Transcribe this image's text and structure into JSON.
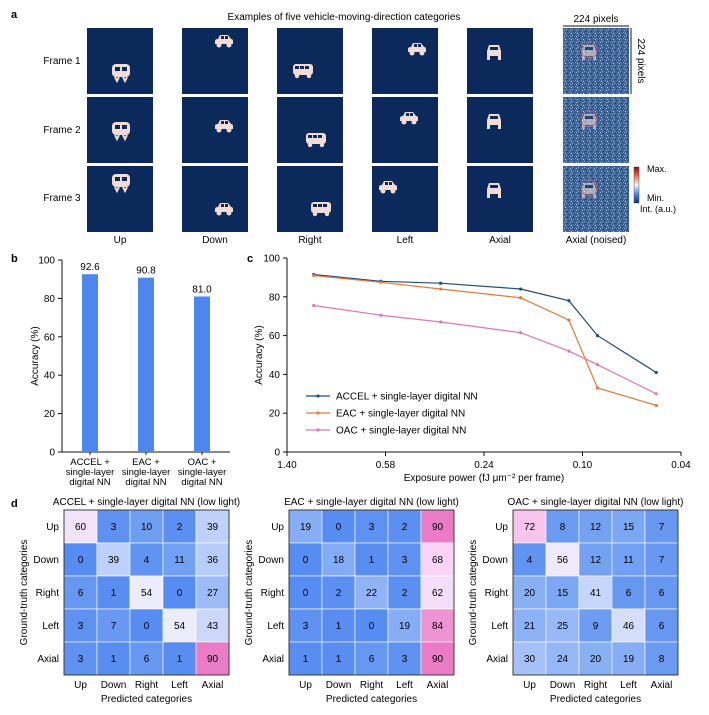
{
  "panel_labels": {
    "a": "a",
    "b": "b",
    "c": "c",
    "d": "d"
  },
  "panel_a": {
    "title": "Examples of five vehicle-moving-direction categories",
    "frame_labels": [
      "Frame 1",
      "Frame 2",
      "Frame 3"
    ],
    "categories": [
      "Up",
      "Down",
      "Right",
      "Left",
      "Axial",
      "Axial (noised)"
    ],
    "size_top": "224 pixels",
    "size_side": "224 pixels",
    "colorbar": {
      "max": "Max.",
      "min": "Min.",
      "unit": "Int. (a.u.)"
    },
    "colors": {
      "background": "#0b2a5b",
      "vehicle": "#f2ddd6",
      "noise_bg": "#4d6f9e"
    }
  },
  "chart_data": [
    {
      "type": "bar",
      "panel": "b",
      "categories": [
        "ACCEL +\nsingle-layer\ndigital NN",
        "EAC +\nsingle-layer\ndigital NN",
        "OAC +\nsingle-layer\ndigital NN"
      ],
      "values": [
        92.6,
        90.8,
        81.0
      ],
      "value_labels": [
        "92.6",
        "90.8",
        "81.0"
      ],
      "ylabel": "Accuracy (%)",
      "yticks": [
        "0",
        "20",
        "40",
        "60",
        "80",
        "100"
      ],
      "ylim": [
        0,
        100
      ],
      "color": "#4f86ee"
    },
    {
      "type": "line",
      "panel": "c",
      "xlabel": "Exposure power (fJ μm⁻² per frame)",
      "ylabel": "Accuracy (%)",
      "x_scale": "log",
      "xticks": [
        "1.40",
        "0.58",
        "0.24",
        "0.10",
        "0.04"
      ],
      "x_range": [
        1.4,
        0.04
      ],
      "yticks": [
        "0",
        "20",
        "40",
        "60",
        "80",
        "100"
      ],
      "ylim": [
        0,
        100
      ],
      "x": [
        1.1,
        0.6,
        0.35,
        0.17,
        0.11,
        0.085,
        0.05
      ],
      "series": [
        {
          "name": "ACCEL + single-layer digital NN",
          "color": "#1f4e79",
          "values": [
            91.5,
            88,
            87,
            84,
            78,
            60,
            41
          ]
        },
        {
          "name": "EAC + single-layer digital NN",
          "color": "#e07a3a",
          "values": [
            91,
            87.5,
            84,
            79.5,
            68,
            33,
            24
          ]
        },
        {
          "name": "OAC + single-layer digital NN",
          "color": "#d779b5",
          "values": [
            75.5,
            70.5,
            67,
            61.5,
            52,
            45,
            30
          ]
        }
      ],
      "legend_position": "lower-left"
    },
    {
      "type": "heatmap",
      "panel": "d",
      "title": "ACCEL + single-layer digital NN (low light)",
      "xlabel": "Predicted categories",
      "ylabel": "Ground-truth categories",
      "row_labels": [
        "Up",
        "Down",
        "Right",
        "Left",
        "Axial"
      ],
      "col_labels": [
        "Up",
        "Down",
        "Right",
        "Left",
        "Axial"
      ],
      "values": [
        [
          60,
          3,
          10,
          2,
          39
        ],
        [
          0,
          39,
          4,
          11,
          36
        ],
        [
          6,
          1,
          54,
          0,
          27
        ],
        [
          3,
          7,
          0,
          54,
          43
        ],
        [
          3,
          1,
          6,
          1,
          90
        ]
      ]
    },
    {
      "type": "heatmap",
      "panel": "d",
      "title": "EAC + single-layer digital NN  (low light)",
      "xlabel": "Predicted categories",
      "ylabel": "Ground-truth categories",
      "row_labels": [
        "Up",
        "Down",
        "Right",
        "Left",
        "Axial"
      ],
      "col_labels": [
        "Up",
        "Down",
        "Right",
        "Left",
        "Axial"
      ],
      "values": [
        [
          19,
          0,
          3,
          2,
          90
        ],
        [
          0,
          18,
          1,
          3,
          68
        ],
        [
          0,
          2,
          22,
          2,
          62
        ],
        [
          3,
          1,
          0,
          19,
          84
        ],
        [
          1,
          1,
          6,
          3,
          90
        ]
      ]
    },
    {
      "type": "heatmap",
      "panel": "d",
      "title": "OAC + single-layer digital NN (low light)",
      "xlabel": "Predicted categories",
      "ylabel": "Ground-truth categories",
      "row_labels": [
        "Up",
        "Down",
        "Right",
        "Left",
        "Axial"
      ],
      "col_labels": [
        "Up",
        "Down",
        "Right",
        "Left",
        "Axial"
      ],
      "values": [
        [
          72,
          8,
          12,
          15,
          7
        ],
        [
          4,
          56,
          12,
          11,
          7
        ],
        [
          20,
          15,
          41,
          6,
          6
        ],
        [
          21,
          25,
          9,
          46,
          6
        ],
        [
          30,
          24,
          20,
          19,
          8
        ]
      ]
    }
  ]
}
